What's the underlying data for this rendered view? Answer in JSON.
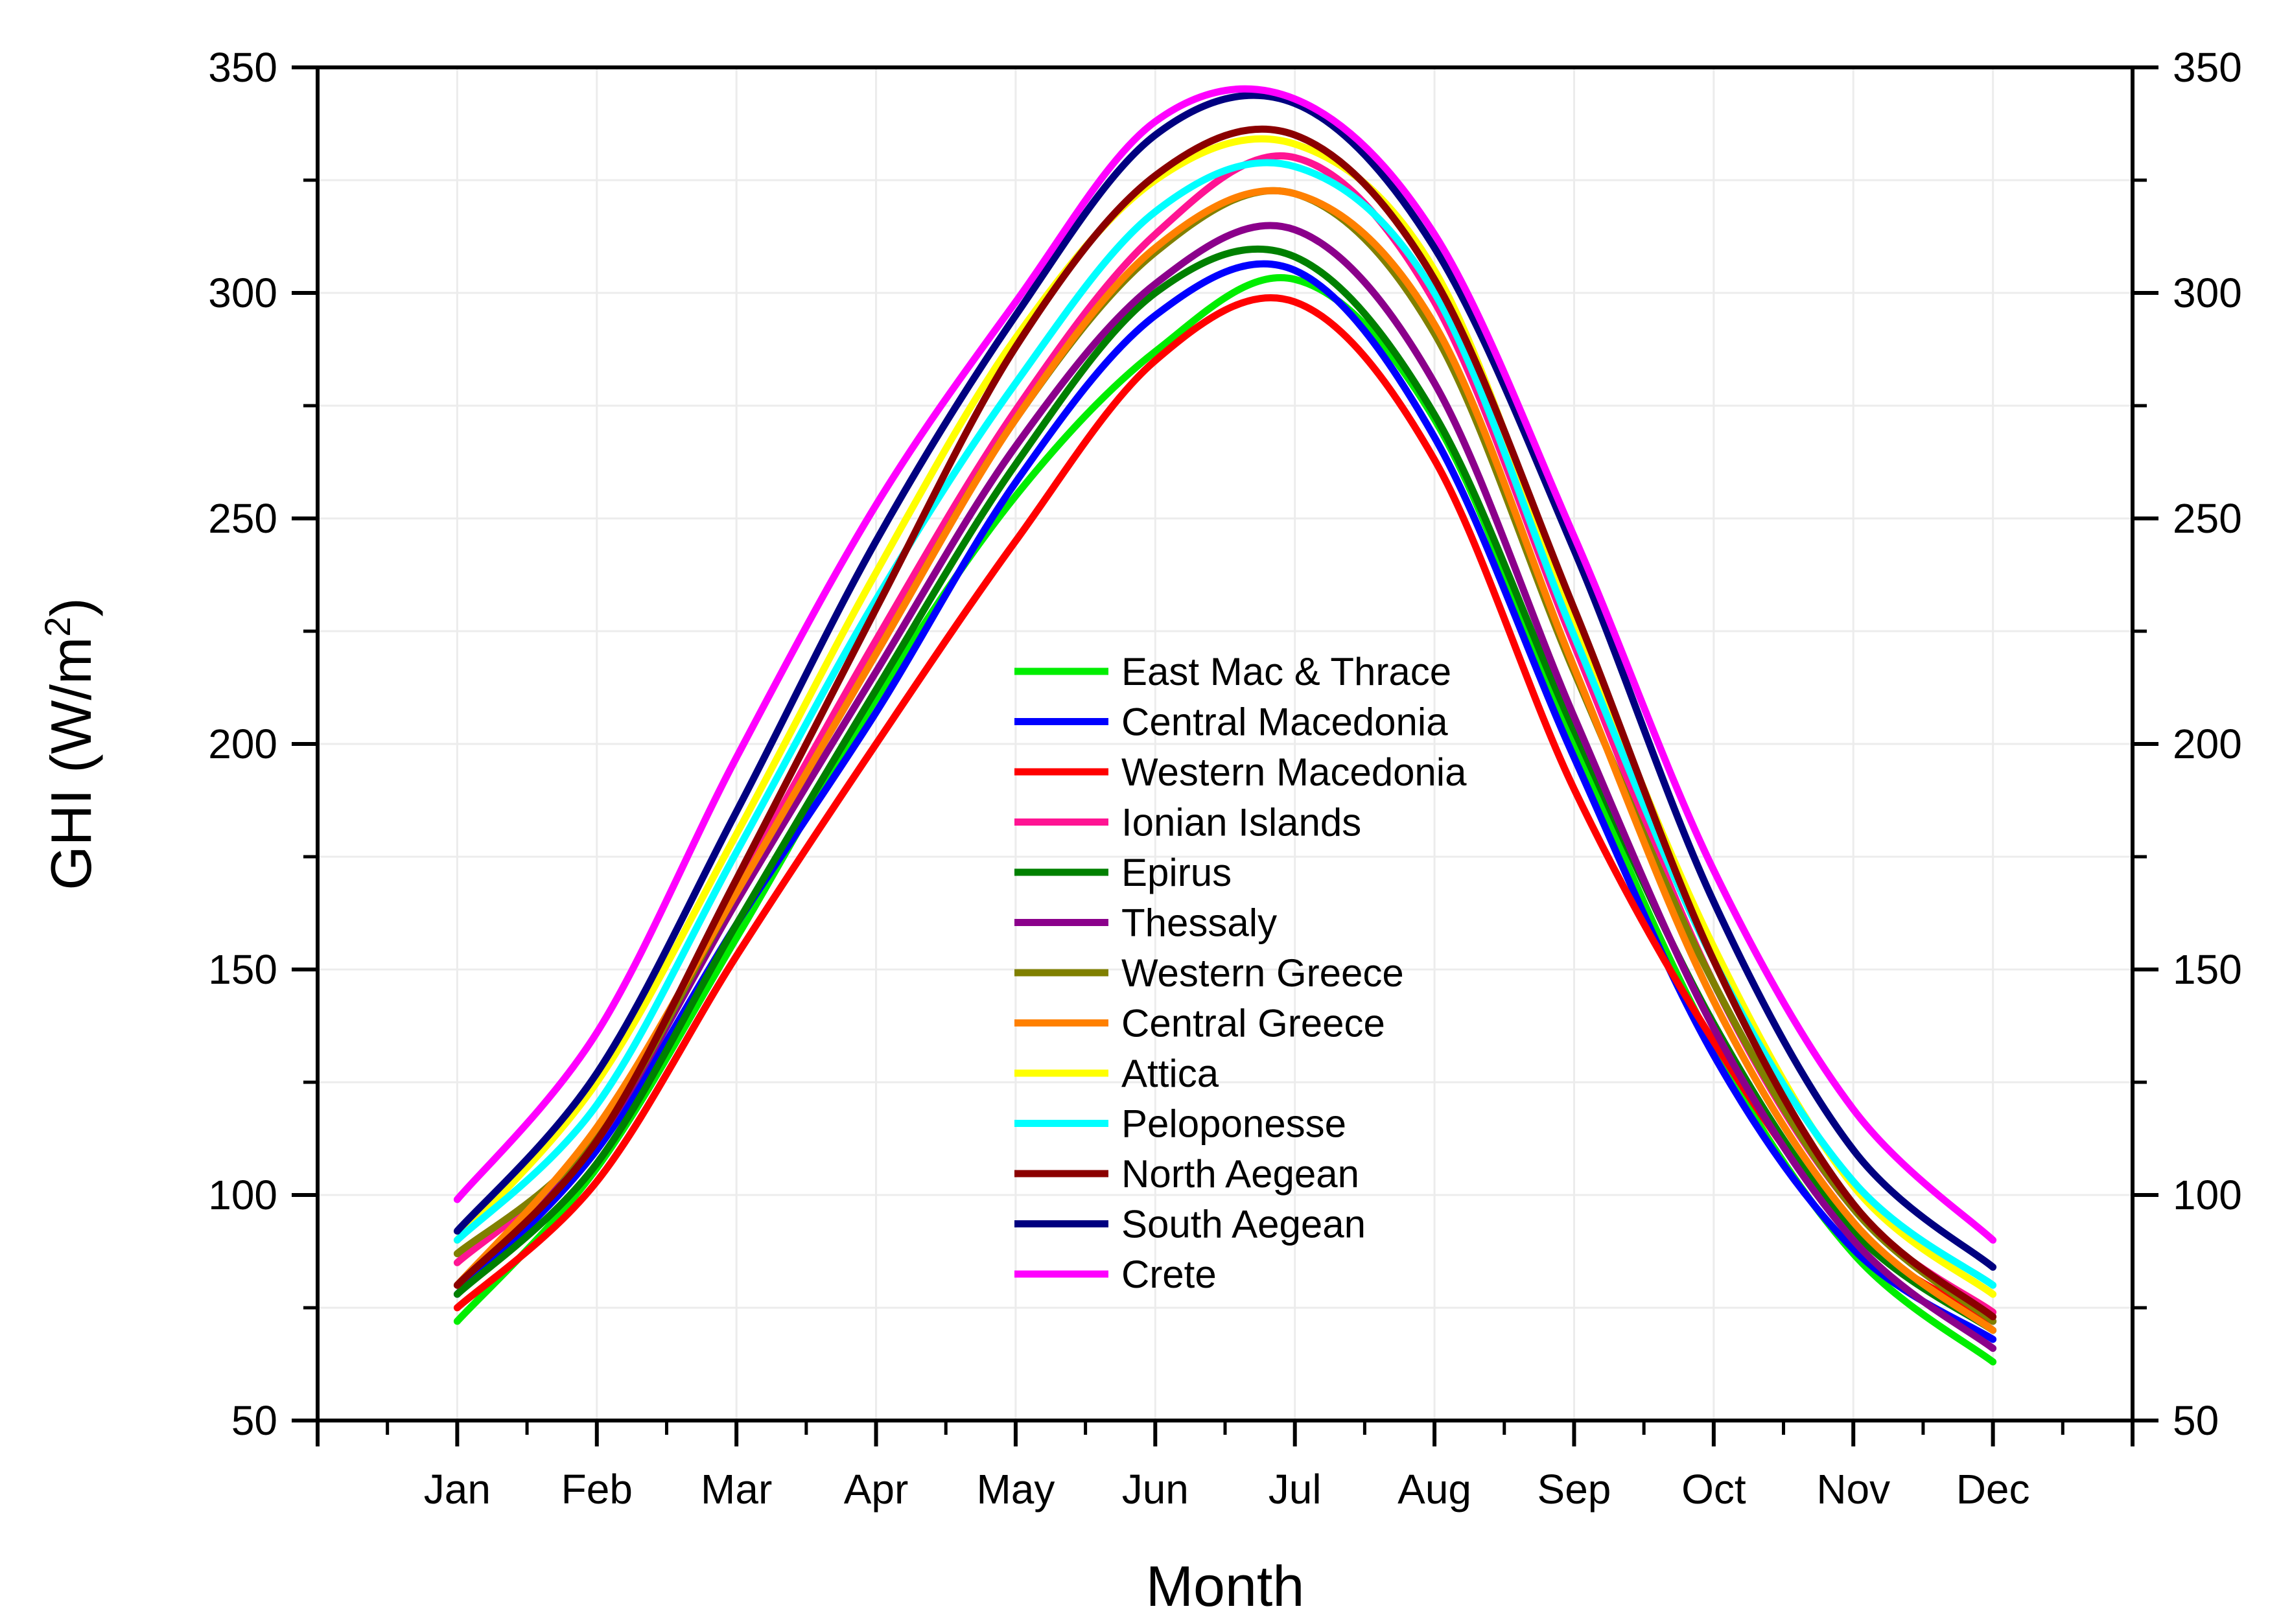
{
  "chart_data": {
    "type": "line",
    "title": "",
    "xlabel": "Month",
    "ylabel": "GHI (W/m",
    "ylabel_superscript": "2",
    "ylabel_suffix": ")",
    "ylim": [
      50,
      350
    ],
    "yticks": [
      50,
      100,
      150,
      200,
      250,
      300,
      350
    ],
    "grid": true,
    "right_axis": true,
    "legend_position": "center",
    "categories": [
      "Jan",
      "Feb",
      "Mar",
      "Apr",
      "May",
      "Jun",
      "Jul",
      "Aug",
      "Sep",
      "Oct",
      "Nov",
      "Dec"
    ],
    "series": [
      {
        "name": "East Mac & Thrace",
        "color": "#00ee00",
        "values": [
          72,
          106,
          157,
          210,
          255,
          287,
          303,
          272,
          200,
          133,
          87,
          63
        ]
      },
      {
        "name": "Central Macedonia",
        "color": "#0000ff",
        "values": [
          78,
          110,
          160,
          207,
          258,
          295,
          305,
          268,
          197,
          131,
          88,
          68
        ]
      },
      {
        "name": "Western Macedonia",
        "color": "#ff0000",
        "values": [
          75,
          103,
          153,
          200,
          245,
          285,
          298,
          263,
          190,
          134,
          92,
          72
        ]
      },
      {
        "name": "Ionian Islands",
        "color": "#ff1493",
        "values": [
          85,
          113,
          168,
          223,
          274,
          313,
          330,
          298,
          222,
          147,
          97,
          74
        ]
      },
      {
        "name": "Epirus",
        "color": "#008000",
        "values": [
          78,
          107,
          160,
          212,
          262,
          300,
          308,
          273,
          203,
          138,
          92,
          70
        ]
      },
      {
        "name": "Thessaly",
        "color": "#8b008b",
        "values": [
          80,
          112,
          165,
          216,
          266,
          302,
          314,
          280,
          206,
          137,
          90,
          66
        ]
      },
      {
        "name": "Western Greece",
        "color": "#808000",
        "values": [
          87,
          113,
          167,
          220,
          272,
          309,
          322,
          291,
          216,
          147,
          97,
          72
        ]
      },
      {
        "name": "Central Greece",
        "color": "#ff8000",
        "values": [
          80,
          115,
          167,
          220,
          272,
          310,
          322,
          293,
          217,
          143,
          94,
          70
        ]
      },
      {
        "name": "Attica",
        "color": "#ffff00",
        "values": [
          90,
          125,
          180,
          238,
          290,
          325,
          333,
          305,
          228,
          155,
          102,
          78
        ]
      },
      {
        "name": "Peloponesse",
        "color": "#00ffff",
        "values": [
          90,
          120,
          176,
          232,
          280,
          318,
          328,
          300,
          224,
          152,
          103,
          80
        ]
      },
      {
        "name": "North Aegean",
        "color": "#8b0000",
        "values": [
          80,
          112,
          170,
          230,
          288,
          326,
          335,
          303,
          230,
          152,
          98,
          73
        ]
      },
      {
        "name": "South Aegean",
        "color": "#000080",
        "values": [
          92,
          127,
          185,
          245,
          295,
          335,
          342,
          310,
          243,
          165,
          110,
          84
        ]
      },
      {
        "name": "Crete",
        "color": "#ff00ff",
        "values": [
          99,
          136,
          197,
          253,
          298,
          338,
          343,
          313,
          246,
          172,
          119,
          90
        ]
      }
    ]
  }
}
